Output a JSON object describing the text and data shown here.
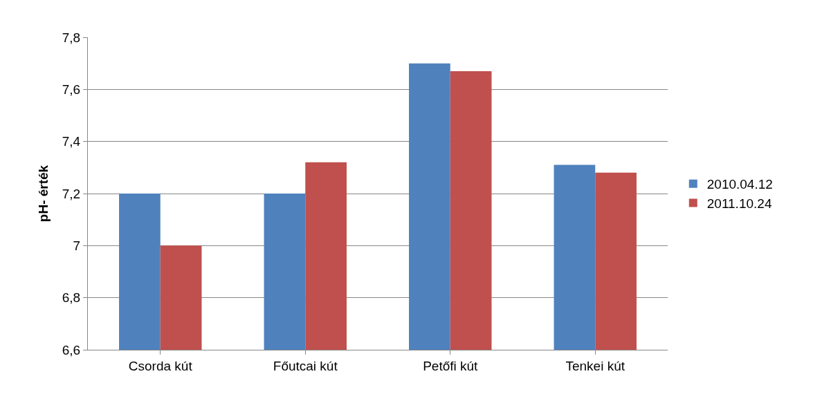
{
  "chart_data": {
    "type": "bar",
    "ylabel": "pH- érték",
    "categories": [
      "Csorda kút",
      "Főutcai kút",
      "Petőfi kút",
      "Tenkei kút"
    ],
    "series": [
      {
        "name": "2010.04.12",
        "color": "#4f81bd",
        "values": [
          7.2,
          7.2,
          7.7,
          7.31
        ]
      },
      {
        "name": "2011.10.24",
        "color": "#c0504d",
        "values": [
          7.0,
          7.32,
          7.67,
          7.28
        ]
      }
    ],
    "ylim": [
      6.6,
      7.8
    ],
    "yticks": [
      {
        "value": 6.6,
        "label": "6,6"
      },
      {
        "value": 6.8,
        "label": "6,8"
      },
      7,
      {
        "value": 7.2,
        "label": "7,2"
      },
      {
        "value": 7.4,
        "label": "7,4"
      },
      {
        "value": 7.6,
        "label": "7,6"
      },
      {
        "value": 7.8,
        "label": "7,8"
      }
    ],
    "grid": "y",
    "legend": "right"
  }
}
